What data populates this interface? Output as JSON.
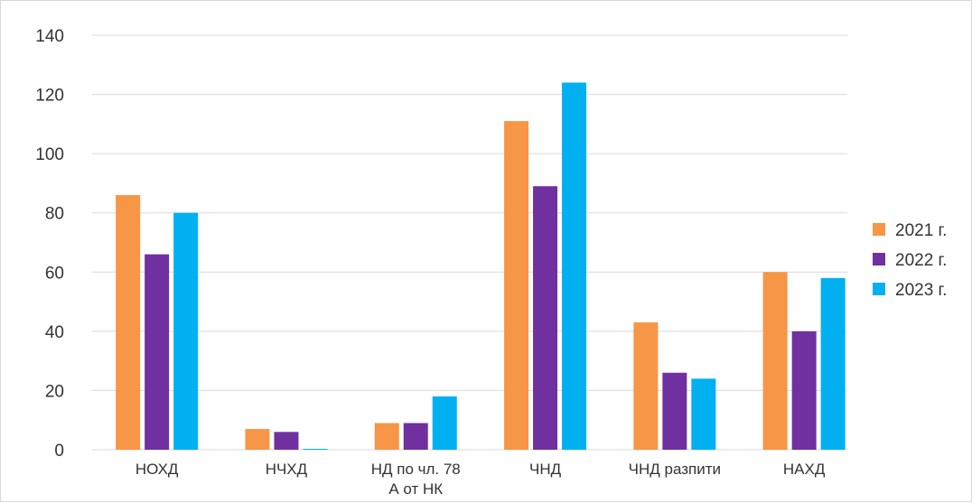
{
  "chart_data": {
    "type": "bar",
    "title": "",
    "xlabel": "",
    "ylabel": "",
    "categories": [
      [
        "НОХД"
      ],
      [
        "НЧХД"
      ],
      [
        "НД по чл. 78",
        "А от НК"
      ],
      [
        "ЧНД"
      ],
      [
        "ЧНД разпити"
      ],
      [
        "НАХД"
      ]
    ],
    "series": [
      {
        "name": "2021 г.",
        "color": "#F79646",
        "values": [
          86,
          7,
          9,
          111,
          43,
          60
        ]
      },
      {
        "name": "2022 г.",
        "color": "#7030A0",
        "values": [
          66,
          6,
          9,
          89,
          26,
          40
        ]
      },
      {
        "name": "2023 г.",
        "color": "#00B0F0",
        "values": [
          80,
          0.3,
          18,
          124,
          24,
          58
        ]
      }
    ],
    "ylim": [
      0,
      140
    ],
    "yticks": [
      0,
      20,
      40,
      60,
      80,
      100,
      120,
      140
    ],
    "grid": true,
    "legend_position": "right"
  }
}
